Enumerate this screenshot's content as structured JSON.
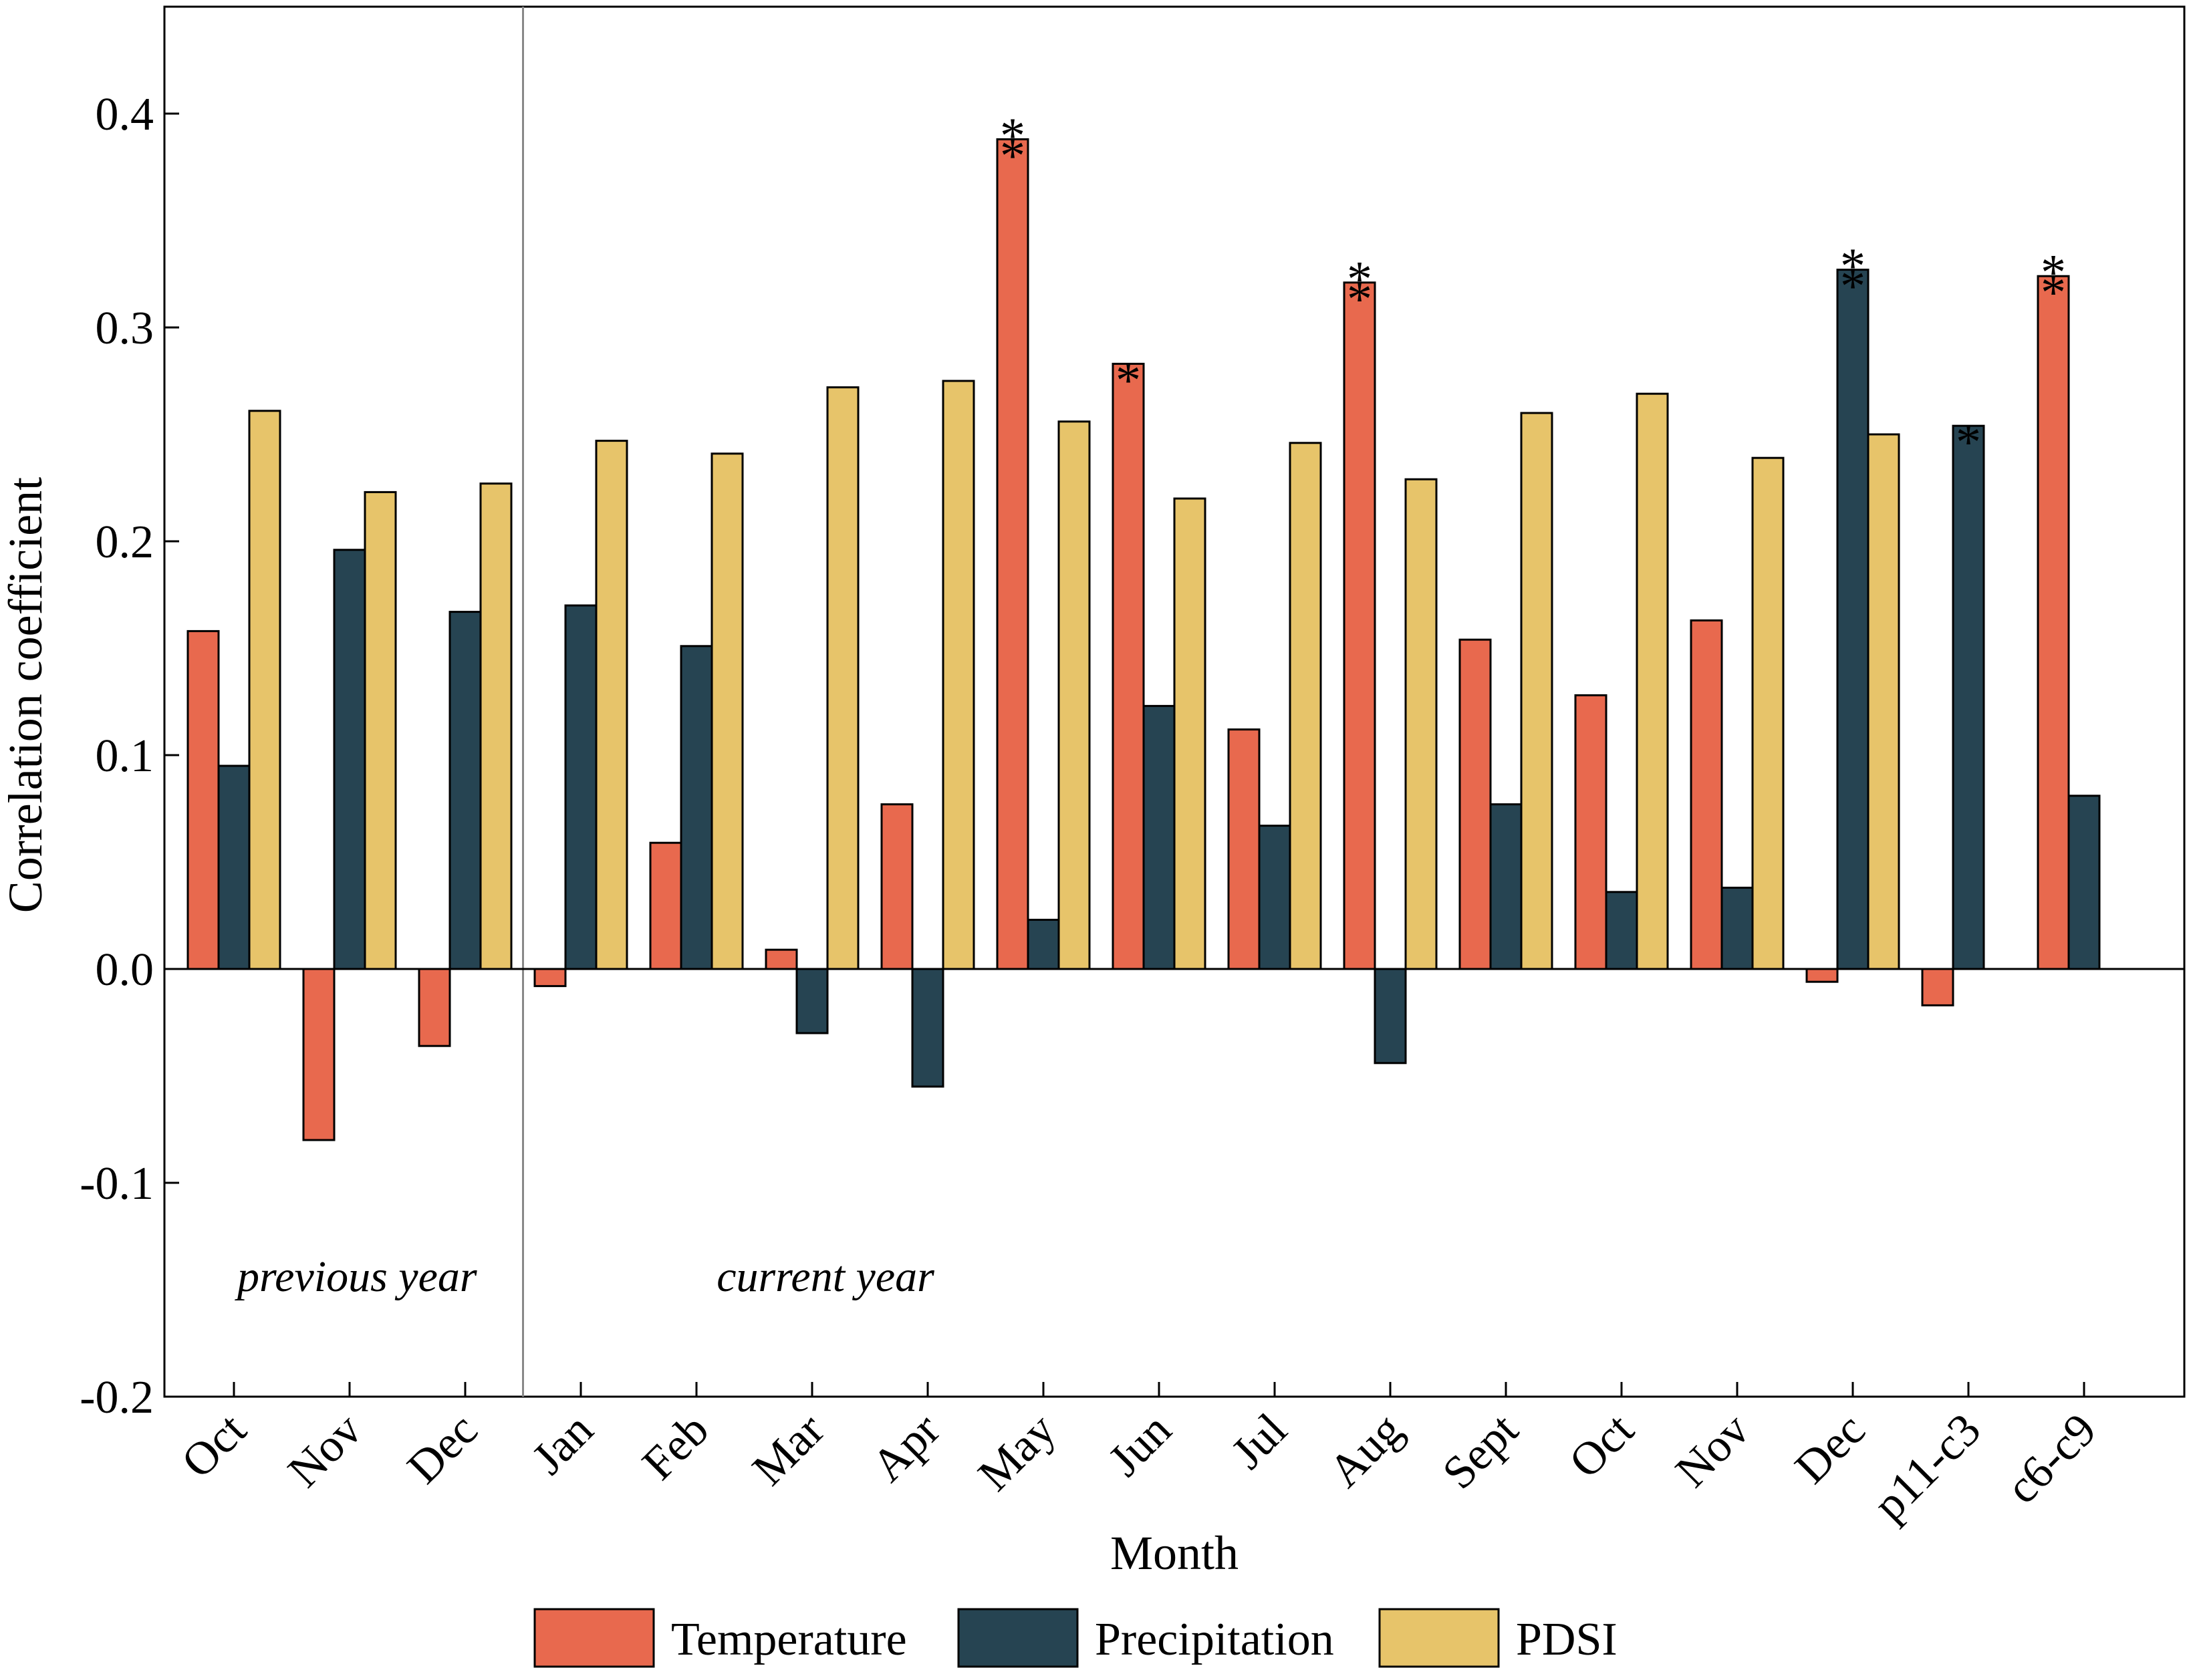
{
  "chart_data": {
    "type": "bar",
    "title": "",
    "xlabel": "Month",
    "ylabel": "Correlation coefficient",
    "ylim": [
      -0.2,
      0.45
    ],
    "yticks": [
      "-0.2",
      "-0.1",
      "0.0",
      "0.1",
      "0.2",
      "0.3",
      "0.4"
    ],
    "grid": false,
    "legend_position": "bottom",
    "categories": [
      "Oct",
      "Nov",
      "Dec",
      "Jan",
      "Feb",
      "Mar",
      "Apr",
      "May",
      "Jun",
      "Jul",
      "Aug",
      "Sept",
      "Oct",
      "Nov",
      "Dec",
      "p11-c3",
      "c6-c9"
    ],
    "series": [
      {
        "name": "Temperature",
        "color": "#E8694E",
        "values": [
          0.158,
          -0.08,
          -0.036,
          -0.008,
          0.059,
          0.009,
          0.077,
          0.388,
          0.283,
          0.112,
          0.321,
          0.154,
          0.128,
          0.163,
          -0.006,
          -0.017,
          0.324
        ],
        "significance": [
          "",
          "",
          "",
          "",
          "",
          "",
          "",
          "**",
          "*",
          "",
          "**",
          "",
          "",
          "",
          "",
          "",
          "**"
        ]
      },
      {
        "name": "Precipitation",
        "color": "#264452",
        "values": [
          0.095,
          0.196,
          0.167,
          0.17,
          0.151,
          -0.03,
          -0.055,
          0.023,
          0.123,
          0.067,
          -0.044,
          0.077,
          0.036,
          0.038,
          0.327,
          0.254,
          0.081
        ],
        "significance": [
          "",
          "",
          "",
          "",
          "",
          "",
          "",
          "",
          "",
          "",
          "",
          "",
          "",
          "",
          "**",
          "*",
          ""
        ]
      },
      {
        "name": "PDSI",
        "color": "#E7C46A",
        "values": [
          0.261,
          0.223,
          0.227,
          0.247,
          0.241,
          0.272,
          0.275,
          0.256,
          0.22,
          0.246,
          0.229,
          0.26,
          0.269,
          0.239,
          0.25,
          null,
          null
        ],
        "significance": [
          "",
          "",
          "",
          "",
          "",
          "",
          "",
          "",
          "",
          "",
          "",
          "",
          "",
          "",
          "",
          "",
          ""
        ]
      }
    ],
    "annotations": [
      {
        "text": "previous year",
        "group": "previous"
      },
      {
        "text": "current year",
        "group": "current"
      }
    ],
    "previous_year_count": 3
  }
}
